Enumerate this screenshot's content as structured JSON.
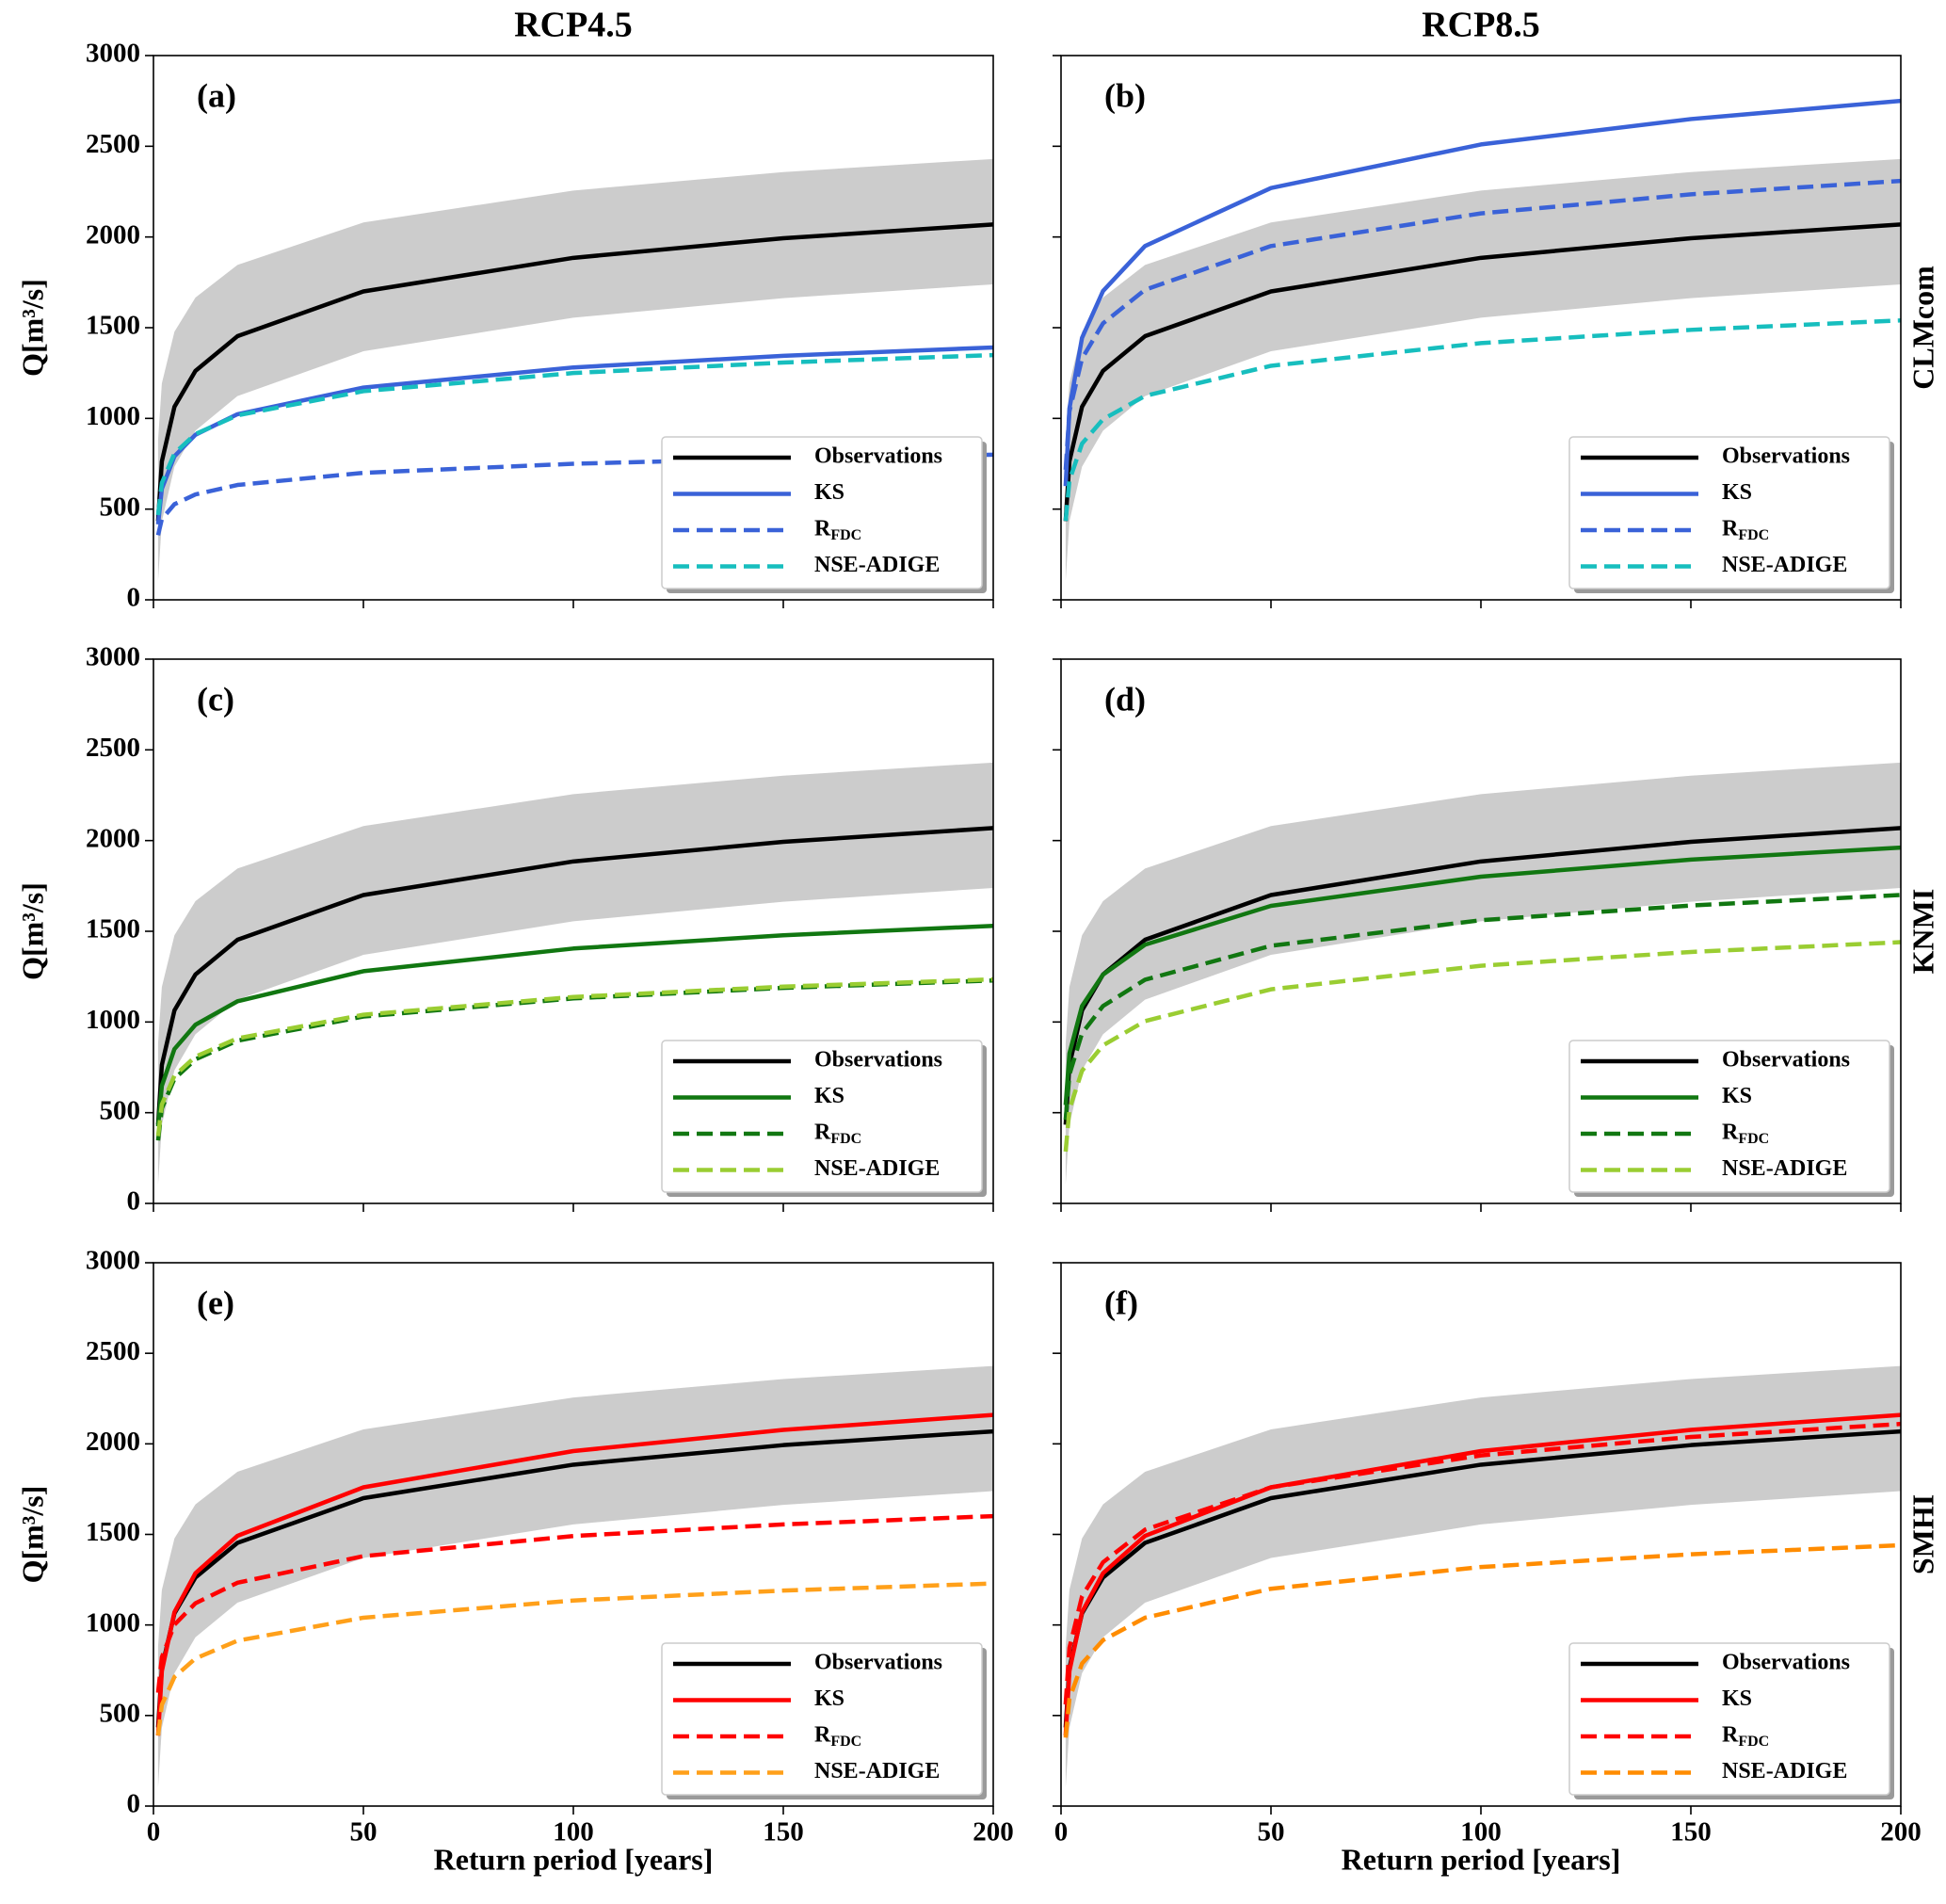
{
  "chart_data": [
    {
      "type": "line",
      "title": "RCP4.5",
      "panel_label": "(a)",
      "ylabel": "Q[m³/s]",
      "x": [
        1.1,
        2,
        5,
        10,
        20,
        50,
        100,
        150,
        200
      ],
      "xlim": [
        0,
        200
      ],
      "xticks": [
        0,
        50,
        100,
        150,
        200
      ],
      "ylim": [
        0,
        3000
      ],
      "yticks": [
        0,
        500,
        1000,
        1500,
        2000,
        2500,
        3000
      ],
      "legend": "lower right",
      "band": {
        "color": "#cccccc",
        "lower": [
          104,
          433,
          734,
          932,
          1123,
          1370,
          1555,
          1663,
          1739
        ],
        "upper": [
          881,
          1193,
          1478,
          1666,
          1846,
          2080,
          2256,
          2358,
          2430
        ]
      },
      "series": [
        {
          "name": "Observations",
          "color": "#000000",
          "linestyle": "solid",
          "values": [
            434,
            763,
            1064,
            1262,
            1453,
            1700,
            1885,
            1993,
            2069
          ]
        },
        {
          "name": "KS",
          "color": "#3a62d8",
          "linestyle": "solid",
          "values": [
            416,
            612,
            791,
            910,
            1023,
            1170,
            1281,
            1345,
            1391
          ]
        },
        {
          "name": "R",
          "name_sub": "FDC",
          "color": "#3a62d8",
          "linestyle": "dashed",
          "values": [
            356,
            445,
            527,
            581,
            633,
            700,
            750,
            780,
            800
          ]
        },
        {
          "name": "NSE-ADIGE",
          "color": "#17bebe",
          "linestyle": "dashed",
          "values": [
            467,
            644,
            807,
            914,
            1017,
            1150,
            1250,
            1308,
            1349
          ]
        }
      ]
    },
    {
      "type": "line",
      "title": "RCP8.5",
      "panel_label": "(b)",
      "row_label": "CLMcom",
      "x": [
        1.1,
        2,
        5,
        10,
        20,
        50,
        100,
        150,
        200
      ],
      "xlim": [
        0,
        200
      ],
      "xticks": [
        0,
        50,
        100,
        150,
        200
      ],
      "ylim": [
        0,
        3000
      ],
      "yticks": [
        0,
        500,
        1000,
        1500,
        2000,
        2500,
        3000
      ],
      "legend": "lower right",
      "band": {
        "color": "#cccccc",
        "lower": [
          104,
          433,
          734,
          932,
          1123,
          1370,
          1555,
          1663,
          1739
        ],
        "upper": [
          881,
          1193,
          1478,
          1666,
          1846,
          2080,
          2256,
          2358,
          2430
        ]
      },
      "series": [
        {
          "name": "Observations",
          "color": "#000000",
          "linestyle": "solid",
          "values": [
            434,
            763,
            1064,
            1262,
            1453,
            1700,
            1885,
            1993,
            2069
          ]
        },
        {
          "name": "KS",
          "color": "#3a62d8",
          "linestyle": "solid",
          "values": [
            627,
            1054,
            1444,
            1702,
            1950,
            2270,
            2510,
            2650,
            2750
          ]
        },
        {
          "name": "R",
          "name_sub": "FDC",
          "color": "#3a62d8",
          "linestyle": "dashed",
          "values": [
            717,
            1038,
            1330,
            1524,
            1709,
            1950,
            2130,
            2235,
            2309
          ]
        },
        {
          "name": "NSE-ADIGE",
          "color": "#17bebe",
          "linestyle": "dashed",
          "values": [
            435,
            658,
            861,
            995,
            1124,
            1290,
            1415,
            1488,
            1540
          ]
        }
      ]
    },
    {
      "type": "line",
      "panel_label": "(c)",
      "ylabel": "Q[m³/s]",
      "x": [
        1.1,
        2,
        5,
        10,
        20,
        50,
        100,
        150,
        200
      ],
      "xlim": [
        0,
        200
      ],
      "xticks": [
        0,
        50,
        100,
        150,
        200
      ],
      "ylim": [
        0,
        3000
      ],
      "yticks": [
        0,
        500,
        1000,
        1500,
        2000,
        2500,
        3000
      ],
      "legend": "lower right",
      "band": {
        "color": "#cccccc",
        "lower": [
          104,
          433,
          734,
          932,
          1123,
          1370,
          1555,
          1663,
          1739
        ],
        "upper": [
          881,
          1193,
          1478,
          1666,
          1846,
          2080,
          2256,
          2358,
          2430
        ]
      },
      "series": [
        {
          "name": "Observations",
          "color": "#000000",
          "linestyle": "solid",
          "values": [
            434,
            763,
            1064,
            1262,
            1453,
            1700,
            1885,
            1993,
            2069
          ]
        },
        {
          "name": "KS",
          "color": "#117711",
          "linestyle": "solid",
          "values": [
            425,
            648,
            851,
            985,
            1114,
            1280,
            1405,
            1478,
            1530
          ]
        },
        {
          "name": "R",
          "name_sub": "FDC",
          "color": "#117711",
          "linestyle": "dashed",
          "values": [
            347,
            524,
            687,
            794,
            897,
            1030,
            1130,
            1188,
            1229
          ]
        },
        {
          "name": "NSE-ADIGE",
          "color": "#9acd32",
          "linestyle": "dashed",
          "values": [
            371,
            545,
            704,
            809,
            910,
            1040,
            1138,
            1195,
            1235
          ]
        }
      ]
    },
    {
      "type": "line",
      "panel_label": "(d)",
      "row_label": "KNMI",
      "x": [
        1.1,
        2,
        5,
        10,
        20,
        50,
        100,
        150,
        200
      ],
      "xlim": [
        0,
        200
      ],
      "xticks": [
        0,
        50,
        100,
        150,
        200
      ],
      "ylim": [
        0,
        3000
      ],
      "yticks": [
        0,
        500,
        1000,
        1500,
        2000,
        2500,
        3000
      ],
      "legend": "lower right",
      "band": {
        "color": "#cccccc",
        "lower": [
          104,
          433,
          734,
          932,
          1123,
          1370,
          1555,
          1663,
          1739
        ],
        "upper": [
          881,
          1193,
          1478,
          1666,
          1846,
          2080,
          2256,
          2358,
          2430
        ]
      },
      "series": [
        {
          "name": "Observations",
          "color": "#000000",
          "linestyle": "solid",
          "values": [
            434,
            763,
            1064,
            1262,
            1453,
            1700,
            1885,
            1993,
            2069
          ]
        },
        {
          "name": "KS",
          "color": "#117711",
          "linestyle": "solid",
          "values": [
            542,
            827,
            1088,
            1261,
            1426,
            1640,
            1801,
            1895,
            1961
          ]
        },
        {
          "name": "R",
          "name_sub": "FDC",
          "color": "#117711",
          "linestyle": "dashed",
          "values": [
            460,
            710,
            938,
            1088,
            1233,
            1420,
            1561,
            1642,
            1700
          ]
        },
        {
          "name": "NSE-ADIGE",
          "color": "#9acd32",
          "linestyle": "dashed",
          "values": [
            286,
            519,
            731,
            871,
            1005,
            1180,
            1310,
            1386,
            1440
          ]
        }
      ]
    },
    {
      "type": "line",
      "panel_label": "(e)",
      "ylabel": "Q[m³/s]",
      "xlabel": "Return period [years]",
      "x": [
        1.1,
        2,
        5,
        10,
        20,
        50,
        100,
        150,
        200
      ],
      "xlim": [
        0,
        200
      ],
      "xticks": [
        0,
        50,
        100,
        150,
        200
      ],
      "ylim": [
        0,
        3000
      ],
      "yticks": [
        0,
        500,
        1000,
        1500,
        2000,
        2500,
        3000
      ],
      "legend": "lower right",
      "band": {
        "color": "#cccccc",
        "lower": [
          104,
          433,
          734,
          932,
          1123,
          1370,
          1555,
          1663,
          1739
        ],
        "upper": [
          881,
          1193,
          1478,
          1666,
          1846,
          2080,
          2256,
          2358,
          2430
        ]
      },
      "series": [
        {
          "name": "Observations",
          "color": "#000000",
          "linestyle": "solid",
          "values": [
            434,
            763,
            1064,
            1262,
            1453,
            1700,
            1885,
            1993,
            2069
          ]
        },
        {
          "name": "KS",
          "color": "#ff0000",
          "linestyle": "solid",
          "values": [
            389,
            745,
            1071,
            1286,
            1492,
            1760,
            1960,
            2077,
            2160
          ]
        },
        {
          "name": "R",
          "name_sub": "FDC",
          "color": "#ff0000",
          "linestyle": "dashed",
          "values": [
            626,
            822,
            1001,
            1120,
            1233,
            1380,
            1491,
            1555,
            1601
          ]
        },
        {
          "name": "NSE-ADIGE",
          "color": "#ffa01a",
          "linestyle": "dashed",
          "values": [
            390,
            559,
            713,
            815,
            913,
            1040,
            1135,
            1190,
            1229
          ]
        }
      ]
    },
    {
      "type": "line",
      "panel_label": "(f)",
      "row_label": "SMHI",
      "xlabel": "Return period [years]",
      "x": [
        1.1,
        2,
        5,
        10,
        20,
        50,
        100,
        150,
        200
      ],
      "xlim": [
        0,
        200
      ],
      "xticks": [
        0,
        50,
        100,
        150,
        200
      ],
      "ylim": [
        0,
        3000
      ],
      "yticks": [
        0,
        500,
        1000,
        1500,
        2000,
        2500,
        3000
      ],
      "legend": "lower right",
      "band": {
        "color": "#cccccc",
        "lower": [
          104,
          433,
          734,
          932,
          1123,
          1370,
          1555,
          1663,
          1739
        ],
        "upper": [
          881,
          1193,
          1478,
          1666,
          1846,
          2080,
          2256,
          2358,
          2430
        ]
      },
      "series": [
        {
          "name": "Observations",
          "color": "#000000",
          "linestyle": "solid",
          "values": [
            434,
            763,
            1064,
            1262,
            1453,
            1700,
            1885,
            1993,
            2069
          ]
        },
        {
          "name": "KS",
          "color": "#ff0000",
          "linestyle": "solid",
          "values": [
            389,
            745,
            1071,
            1286,
            1492,
            1760,
            1960,
            2077,
            2160
          ]
        },
        {
          "name": "R",
          "name_sub": "FDC",
          "color": "#ff0000",
          "linestyle": "dashed",
          "values": [
            561,
            873,
            1158,
            1346,
            1526,
            1760,
            1936,
            2038,
            2110
          ]
        },
        {
          "name": "NSE-ADIGE",
          "color": "#ff8c00",
          "linestyle": "dashed",
          "values": [
            378,
            592,
            787,
            916,
            1040,
            1200,
            1320,
            1390,
            1440
          ]
        }
      ]
    }
  ]
}
